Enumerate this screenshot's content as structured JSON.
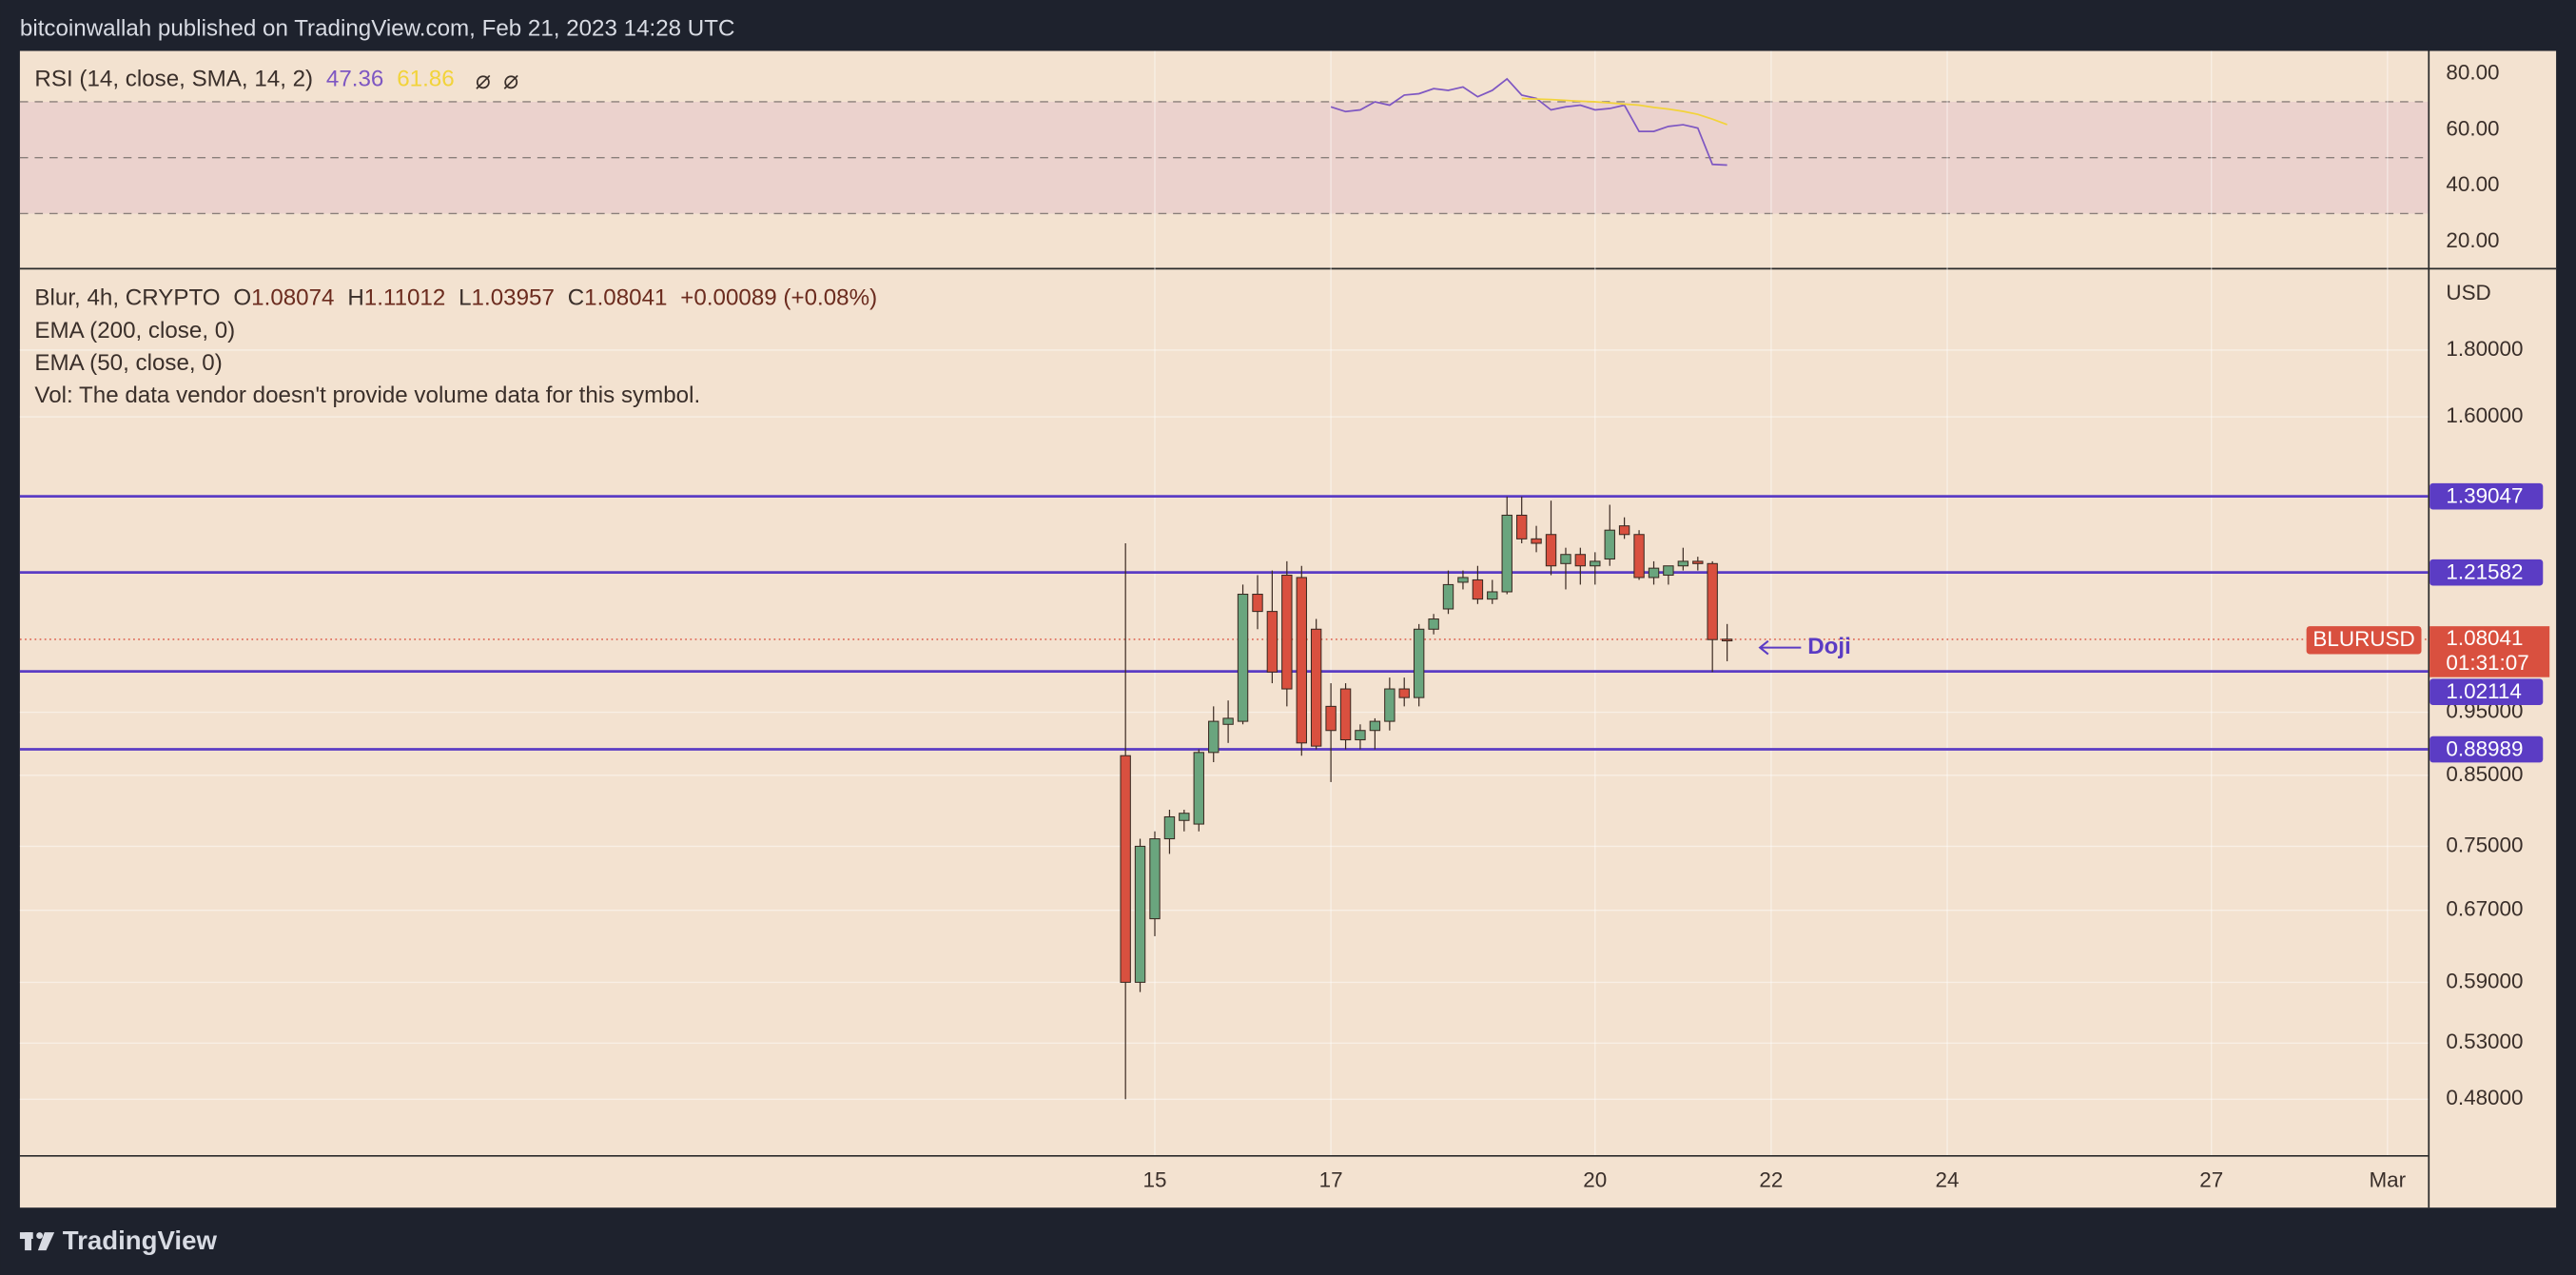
{
  "header": {
    "publisher": "bitcoinwallah published on TradingView.com, Feb 21, 2023 14:28 UTC"
  },
  "footer": {
    "brand": "TradingView"
  },
  "chart_data": [
    {
      "type": "candlestick",
      "symbol_line": "Blur, 4h, CRYPTO",
      "ohlc_labels": [
        "O",
        "H",
        "L",
        "C"
      ],
      "change": "+0.00089 (+0.08%)",
      "indicators": [
        "EMA (200, close, 0)",
        "EMA (50, close, 0)",
        "Vol: The data vendor doesn't provide volume data for this symbol."
      ],
      "currency": "USD",
      "x": [
        14.667,
        14.833,
        15,
        15.167,
        15.333,
        15.5,
        15.667,
        15.833,
        16,
        16.167,
        16.333,
        16.5,
        16.667,
        16.833,
        17,
        17.167,
        17.333,
        17.5,
        17.667,
        17.833,
        18,
        18.167,
        18.333,
        18.5,
        18.667,
        18.833,
        19,
        19.167,
        19.333,
        19.5,
        19.667,
        19.833,
        20,
        20.167,
        20.333,
        20.5,
        20.667,
        20.833,
        21,
        21.167,
        21.333,
        21.5
      ],
      "xlim": [
        2.11,
        29.46
      ],
      "xticks": [
        15,
        17,
        20,
        22,
        24,
        27,
        {
          "value": 29,
          "label": "Mar"
        }
      ],
      "open": [
        0.88,
        0.59,
        0.66,
        0.76,
        0.785,
        0.78,
        0.885,
        0.93,
        0.935,
        1.17,
        1.135,
        1.21,
        1.205,
        1.1,
        0.96,
        0.99,
        0.905,
        0.92,
        0.935,
        0.99,
        0.975,
        1.1,
        1.14,
        1.195,
        1.2,
        1.16,
        1.175,
        1.345,
        1.29,
        1.3,
        1.235,
        1.255,
        1.23,
        1.245,
        1.32,
        1.3,
        1.205,
        1.21,
        1.23,
        1.24,
        1.235,
        1.08074
      ],
      "high": [
        1.28,
        0.76,
        0.77,
        0.8,
        0.8,
        0.89,
        0.96,
        0.97,
        1.19,
        1.21,
        1.22,
        1.24,
        1.23,
        1.12,
        1.0,
        1.0,
        0.93,
        0.94,
        1.01,
        1.01,
        1.11,
        1.13,
        1.22,
        1.22,
        1.23,
        1.2,
        1.39,
        1.39,
        1.32,
        1.38,
        1.27,
        1.27,
        1.26,
        1.37,
        1.34,
        1.31,
        1.24,
        1.23,
        1.27,
        1.25,
        1.24,
        1.11012
      ],
      "low": [
        0.48,
        0.58,
        0.64,
        0.74,
        0.77,
        0.77,
        0.87,
        0.9,
        0.93,
        1.1,
        1.0,
        0.96,
        0.88,
        0.89,
        0.84,
        0.89,
        0.89,
        0.89,
        0.92,
        0.96,
        0.96,
        1.09,
        1.13,
        1.18,
        1.15,
        1.15,
        1.17,
        1.28,
        1.26,
        1.21,
        1.18,
        1.19,
        1.19,
        1.23,
        1.29,
        1.2,
        1.19,
        1.19,
        1.22,
        1.22,
        1.02,
        1.03957
      ],
      "close": [
        0.59,
        0.75,
        0.76,
        0.79,
        0.795,
        0.885,
        0.935,
        0.94,
        1.17,
        1.135,
        1.02,
        0.99,
        0.9,
        0.895,
        0.92,
        0.905,
        0.92,
        0.935,
        0.99,
        0.975,
        1.1,
        1.12,
        1.19,
        1.205,
        1.16,
        1.175,
        1.345,
        1.29,
        1.28,
        1.23,
        1.255,
        1.23,
        1.24,
        1.31,
        1.3,
        1.205,
        1.225,
        1.23,
        1.24,
        1.235,
        1.08,
        1.08041
      ],
      "up_color": "#6aa57e",
      "down_color": "#d9503f",
      "log_scale": true,
      "ylim": [
        0.435,
        2.075
      ],
      "yticks": [
        {
          "value": 1.8,
          "label": "1.80000"
        },
        {
          "value": 1.6,
          "label": "1.60000"
        },
        {
          "value": 0.95,
          "label": "0.95000"
        },
        {
          "value": 0.85,
          "label": "0.85000"
        },
        {
          "value": 0.75,
          "label": "0.75000"
        },
        {
          "value": 0.67,
          "label": "0.67000"
        },
        {
          "value": 0.59,
          "label": "0.59000"
        },
        {
          "value": 0.53,
          "label": "0.53000"
        },
        {
          "value": 0.48,
          "label": "0.48000"
        }
      ],
      "grid": true,
      "levels": [
        1.39047,
        1.21582,
        1.02114,
        0.88989
      ],
      "level_color": "#5b3cc4",
      "symbol": "BLURUSD",
      "countdown": "01:31:07",
      "annotation": "Doji"
    },
    {
      "type": "line",
      "title": "RSI (14, close, SMA, 14, 2)",
      "ylim": [
        10.6,
        88.2
      ],
      "yticks": [
        {
          "value": 80,
          "label": "80.00"
        },
        {
          "value": 60,
          "label": "60.00"
        },
        {
          "value": 40,
          "label": "40.00"
        },
        {
          "value": 20,
          "label": "20.00"
        }
      ],
      "levels": [
        70,
        50,
        30
      ],
      "series": [
        {
          "color": "#7e57c2",
          "values": [
            null,
            null,
            null,
            null,
            null,
            null,
            null,
            null,
            null,
            null,
            null,
            null,
            null,
            null,
            68.2,
            66.5,
            67.1,
            70,
            68.8,
            72.4,
            72.9,
            74.7,
            74.1,
            75.3,
            71.8,
            74.1,
            78.2,
            72.4,
            71.2,
            67.1,
            68.2,
            68.8,
            67.1,
            67.6,
            68.8,
            59.4,
            59.4,
            61.2,
            61.8,
            60.6,
            47.6,
            47.36
          ]
        },
        {
          "color": "#f2d33a",
          "values": [
            null,
            null,
            null,
            null,
            null,
            null,
            null,
            null,
            null,
            null,
            null,
            null,
            null,
            null,
            null,
            null,
            null,
            null,
            null,
            null,
            null,
            null,
            null,
            null,
            null,
            null,
            null,
            71.2,
            71,
            70.8,
            70.5,
            70.2,
            70,
            69.6,
            69.2,
            68.8,
            68,
            67.4,
            66.6,
            65.5,
            63.8,
            61.86
          ]
        }
      ]
    }
  ]
}
